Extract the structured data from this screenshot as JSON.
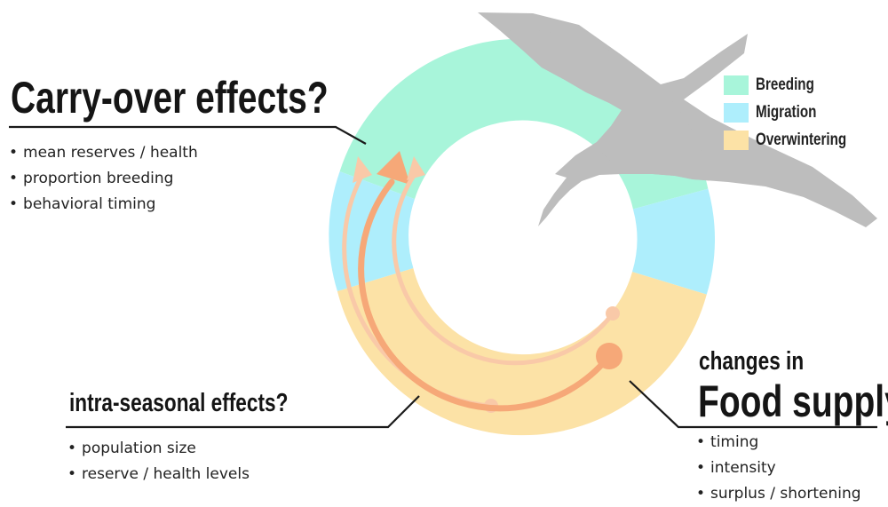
{
  "colors": {
    "breeding": "#a8f5da",
    "migration": "#aeeefc",
    "overwintering": "#fce2a6",
    "bird": "#bdbdbd",
    "bird_overlap": "#6ccca4",
    "arrow_main": "#f6a878",
    "arrow_light": "#f9c9a8",
    "callout_line": "#1a1a1a"
  },
  "icons": {
    "bird": "crane-silhouette-icon"
  },
  "legend": [
    {
      "label": "Breeding",
      "color": "#a8f5da"
    },
    {
      "label": "Migration",
      "color": "#aeeefc"
    },
    {
      "label": "Overwintering",
      "color": "#fce2a6"
    }
  ],
  "carry_over": {
    "heading": "Carry-over effects?",
    "bullets": [
      "mean reserves / health",
      "proportion breeding",
      "behavioral timing"
    ]
  },
  "intra_seasonal": {
    "heading": "intra-seasonal effects?",
    "bullets": [
      "population size",
      "reserve / health levels"
    ]
  },
  "food_supply": {
    "heading_small": "changes in",
    "heading_large": "Food supply",
    "bullets": [
      "timing",
      "intensity",
      "surplus / shortening"
    ]
  }
}
